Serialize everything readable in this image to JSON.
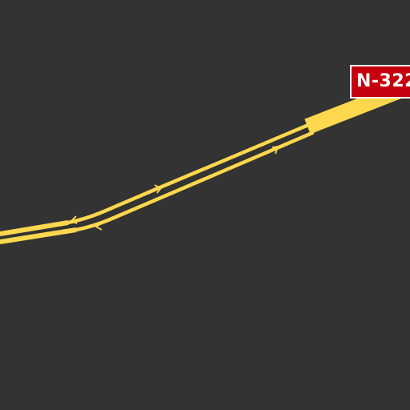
{
  "map": {
    "background_color": "#333333",
    "road_color": "#ffd84d",
    "shield_color": "#c4000e",
    "road_shield": {
      "label": "N-322",
      "icon": "road-shield-icon"
    },
    "direction_arrows": [
      {
        "name": "direction-arrow-northeast-1",
        "direction": "northeast"
      },
      {
        "name": "direction-arrow-northeast-2",
        "direction": "northeast"
      },
      {
        "name": "direction-arrow-southwest-1",
        "direction": "southwest"
      },
      {
        "name": "direction-arrow-southwest-2",
        "direction": "southwest"
      }
    ]
  }
}
